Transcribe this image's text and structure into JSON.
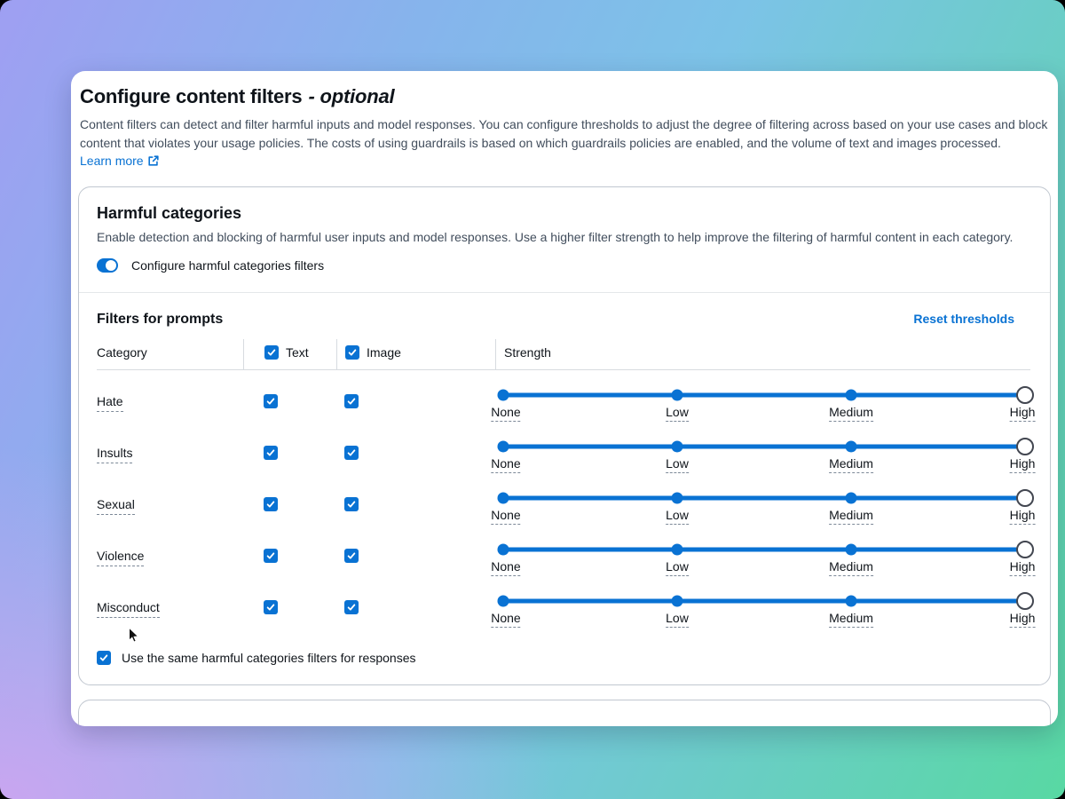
{
  "page": {
    "title": "Configure content filters",
    "title_suffix": "- optional",
    "description": "Content filters can detect and filter harmful inputs and model responses. You can configure thresholds to adjust the degree of filtering across based on your use cases and block content that violates your usage policies. The costs of using guardrails is based on which guardrails policies are enabled, and the volume of text and images processed.",
    "learn_more": "Learn more"
  },
  "harmful_categories": {
    "title": "Harmful categories",
    "description": "Enable detection and blocking of harmful user inputs and model responses. Use a higher filter strength to help improve the filtering of harmful content in each category.",
    "toggle": {
      "label": "Configure harmful categories filters",
      "state": "on"
    }
  },
  "filters_for_prompts": {
    "title": "Filters for prompts",
    "reset_link": "Reset thresholds",
    "columns": {
      "category": "Category",
      "text": "Text",
      "image": "Image",
      "strength": "Strength"
    },
    "header_checkboxes": {
      "text_checked": true,
      "image_checked": true
    },
    "strength_levels": [
      "None",
      "Low",
      "Medium",
      "High"
    ],
    "rows": [
      {
        "category": "Hate",
        "text_checked": true,
        "image_checked": true,
        "strength": "High"
      },
      {
        "category": "Insults",
        "text_checked": true,
        "image_checked": true,
        "strength": "High"
      },
      {
        "category": "Sexual",
        "text_checked": true,
        "image_checked": true,
        "strength": "High"
      },
      {
        "category": "Violence",
        "text_checked": true,
        "image_checked": true,
        "strength": "High"
      },
      {
        "category": "Misconduct",
        "text_checked": true,
        "image_checked": true,
        "strength": "High"
      }
    ]
  },
  "responses_option": {
    "label": "Use the same harmful categories filters for responses",
    "checked": true
  },
  "colors": {
    "accent_blue": "#0972d3",
    "text_dark": "#0f141a",
    "text_gray": "#414d5c",
    "panel_border": "#c1c7d0",
    "gradient_top_left": "#9f9ff2",
    "gradient_top_right": "#7cc3e7",
    "gradient_bottom_right": "#58d8a3",
    "gradient_bottom_left": "#c9a6f0"
  }
}
